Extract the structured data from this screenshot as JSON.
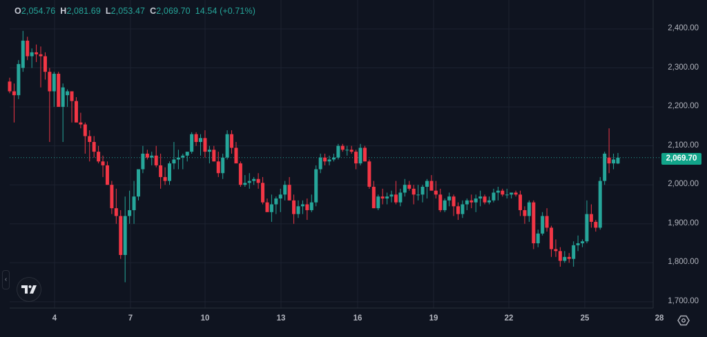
{
  "legend": {
    "open_label": "O",
    "open": "2,054.76",
    "high_label": "H",
    "high": "2,081.69",
    "low_label": "L",
    "low": "2,053.47",
    "close_label": "C",
    "close": "2,069.70",
    "change": "14.54 (+0.71%)"
  },
  "price_axis": {
    "labels": [
      "2,400.00",
      "2,300.00",
      "2,200.00",
      "2,100.00",
      "2,000.00",
      "1,900.00",
      "1,800.00",
      "1,700.00"
    ],
    "current_price": "2,069.70"
  },
  "time_axis": {
    "labels": [
      "4",
      "7",
      "10",
      "13",
      "16",
      "19",
      "22",
      "25",
      "28"
    ]
  },
  "colors": {
    "background": "#0f1420",
    "up": "#26a69a",
    "down": "#f23645",
    "grid": "#1c2230",
    "price_tag": "#12a58a"
  },
  "icons": {
    "logo": "tradingview-logo-icon",
    "settings": "settings-hexagon-icon",
    "collapse": "chevron-left-icon"
  },
  "chart_data": {
    "type": "candlestick",
    "title": "",
    "xlabel": "",
    "ylabel": "",
    "ylim": [
      1680,
      2440
    ],
    "grid": true,
    "x_tick_labels": [
      "4",
      "7",
      "10",
      "13",
      "16",
      "19",
      "22",
      "25",
      "28"
    ],
    "y_tick_labels": [
      2400,
      2300,
      2200,
      2100,
      2000,
      1900,
      1800,
      1700
    ],
    "last_price": 2069.7,
    "ohlc_last": {
      "open": 2054.76,
      "high": 2081.69,
      "low": 2053.47,
      "close": 2069.7,
      "change": 14.54,
      "change_pct": 0.71
    },
    "candles": [
      [
        2265,
        2275,
        2235,
        2240
      ],
      [
        2240,
        2260,
        2160,
        2230
      ],
      [
        2230,
        2320,
        2220,
        2310
      ],
      [
        2300,
        2395,
        2290,
        2370
      ],
      [
        2370,
        2380,
        2320,
        2330
      ],
      [
        2330,
        2350,
        2300,
        2340
      ],
      [
        2340,
        2360,
        2315,
        2335
      ],
      [
        2335,
        2355,
        2250,
        2330
      ],
      [
        2330,
        2340,
        2270,
        2290
      ],
      [
        2290,
        2300,
        2110,
        2240
      ],
      [
        2240,
        2290,
        2200,
        2285
      ],
      [
        2285,
        2290,
        2210,
        2200
      ],
      [
        2200,
        2260,
        2110,
        2250
      ],
      [
        2230,
        2245,
        2200,
        2240
      ],
      [
        2240,
        2240,
        2160,
        2215
      ],
      [
        2215,
        2225,
        2190,
        2160
      ],
      [
        2160,
        2185,
        2145,
        2155
      ],
      [
        2155,
        2160,
        2080,
        2125
      ],
      [
        2125,
        2140,
        2060,
        2110
      ],
      [
        2110,
        2125,
        2070,
        2085
      ],
      [
        2085,
        2100,
        2055,
        2060
      ],
      [
        2060,
        2075,
        2020,
        2050
      ],
      [
        2050,
        2060,
        2000,
        2000
      ],
      [
        2000,
        2010,
        1925,
        1940
      ],
      [
        1940,
        1990,
        1900,
        1920
      ],
      [
        1920,
        1935,
        1810,
        1820
      ],
      [
        1820,
        1970,
        1750,
        1920
      ],
      [
        1920,
        1985,
        1900,
        1935
      ],
      [
        1935,
        2010,
        1900,
        1970
      ],
      [
        1970,
        2015,
        1960,
        2040
      ],
      [
        2040,
        2100,
        2030,
        2080
      ],
      [
        2080,
        2090,
        2065,
        2070
      ],
      [
        2070,
        2085,
        2050,
        2075
      ],
      [
        2075,
        2100,
        2045,
        2050
      ],
      [
        2050,
        2080,
        1990,
        2020
      ],
      [
        2020,
        2045,
        2000,
        2010
      ],
      [
        2010,
        2060,
        2000,
        2055
      ],
      [
        2055,
        2110,
        2040,
        2065
      ],
      [
        2065,
        2090,
        2040,
        2070
      ],
      [
        2070,
        2080,
        2040,
        2075
      ],
      [
        2075,
        2080,
        2060,
        2085
      ],
      [
        2085,
        2135,
        2080,
        2130
      ],
      [
        2130,
        2135,
        2100,
        2110
      ],
      [
        2110,
        2130,
        2075,
        2120
      ],
      [
        2120,
        2140,
        2070,
        2085
      ],
      [
        2085,
        2100,
        2055,
        2090
      ],
      [
        2090,
        2100,
        2060,
        2060
      ],
      [
        2060,
        2085,
        2020,
        2030
      ],
      [
        2030,
        2080,
        2015,
        2070
      ],
      [
        2070,
        2140,
        2065,
        2130
      ],
      [
        2130,
        2140,
        2080,
        2095
      ],
      [
        2095,
        2110,
        2060,
        2055
      ],
      [
        2055,
        2060,
        1995,
        2000
      ],
      [
        2000,
        2025,
        1995,
        2005
      ],
      [
        2005,
        2030,
        1990,
        2010
      ],
      [
        2010,
        2020,
        2000,
        2015
      ],
      [
        2015,
        2030,
        1990,
        2005
      ],
      [
        2005,
        2020,
        1950,
        1955
      ],
      [
        1955,
        1965,
        1940,
        1930
      ],
      [
        1930,
        1975,
        1905,
        1950
      ],
      [
        1950,
        1970,
        1925,
        1965
      ],
      [
        1965,
        1990,
        1930,
        1975
      ],
      [
        1975,
        2010,
        1960,
        2000
      ],
      [
        2000,
        2020,
        1960,
        1960
      ],
      [
        1960,
        1975,
        1900,
        1925
      ],
      [
        1925,
        1960,
        1915,
        1945
      ],
      [
        1945,
        1960,
        1925,
        1950
      ],
      [
        1950,
        1965,
        1910,
        1935
      ],
      [
        1935,
        1975,
        1930,
        1955
      ],
      [
        1955,
        2050,
        1945,
        2040
      ],
      [
        2040,
        2080,
        2030,
        2070
      ],
      [
        2070,
        2080,
        2050,
        2060
      ],
      [
        2060,
        2075,
        2050,
        2065
      ],
      [
        2065,
        2080,
        2060,
        2070
      ],
      [
        2070,
        2105,
        2065,
        2100
      ],
      [
        2100,
        2105,
        2085,
        2090
      ],
      [
        2090,
        2100,
        2075,
        2090
      ],
      [
        2090,
        2100,
        2080,
        2085
      ],
      [
        2085,
        2090,
        2040,
        2055
      ],
      [
        2055,
        2105,
        2050,
        2095
      ],
      [
        2095,
        2100,
        2060,
        2060
      ],
      [
        2060,
        2065,
        1990,
        1995
      ],
      [
        1995,
        2010,
        1940,
        1940
      ],
      [
        1940,
        1975,
        1935,
        1970
      ],
      [
        1970,
        1990,
        1950,
        1965
      ],
      [
        1965,
        1980,
        1950,
        1970
      ],
      [
        1970,
        1985,
        1955,
        1975
      ],
      [
        1975,
        2010,
        1950,
        1955
      ],
      [
        1955,
        1990,
        1945,
        1980
      ],
      [
        1980,
        2015,
        1970,
        2000
      ],
      [
        2000,
        2010,
        1985,
        1990
      ],
      [
        1990,
        2000,
        1950,
        1975
      ],
      [
        1975,
        2000,
        1960,
        1975
      ],
      [
        1975,
        2000,
        1955,
        1995
      ],
      [
        1995,
        2015,
        1965,
        2010
      ],
      [
        2010,
        2025,
        1990,
        1985
      ],
      [
        1985,
        2010,
        1965,
        1975
      ],
      [
        1975,
        1990,
        1930,
        1935
      ],
      [
        1935,
        1965,
        1930,
        1960
      ],
      [
        1960,
        1980,
        1945,
        1970
      ],
      [
        1970,
        1975,
        1920,
        1945
      ],
      [
        1945,
        1955,
        1910,
        1925
      ],
      [
        1925,
        1960,
        1915,
        1950
      ],
      [
        1950,
        1965,
        1935,
        1960
      ],
      [
        1960,
        1975,
        1940,
        1955
      ],
      [
        1955,
        1975,
        1930,
        1965
      ],
      [
        1965,
        1985,
        1945,
        1970
      ],
      [
        1970,
        1975,
        1950,
        1955
      ],
      [
        1955,
        1970,
        1950,
        1960
      ],
      [
        1960,
        1990,
        1955,
        1980
      ],
      [
        1980,
        1995,
        1960,
        1985
      ],
      [
        1985,
        1990,
        1970,
        1975
      ],
      [
        1975,
        1990,
        1965,
        1975
      ],
      [
        1975,
        1980,
        1965,
        1980
      ],
      [
        1980,
        1985,
        1970,
        1975
      ],
      [
        1975,
        1985,
        1920,
        1935
      ],
      [
        1935,
        1945,
        1900,
        1920
      ],
      [
        1920,
        1960,
        1905,
        1955
      ],
      [
        1955,
        1960,
        1835,
        1850
      ],
      [
        1850,
        1885,
        1840,
        1875
      ],
      [
        1875,
        1930,
        1870,
        1920
      ],
      [
        1920,
        1940,
        1880,
        1890
      ],
      [
        1890,
        1895,
        1815,
        1835
      ],
      [
        1835,
        1860,
        1815,
        1830
      ],
      [
        1830,
        1840,
        1790,
        1805
      ],
      [
        1805,
        1830,
        1800,
        1815
      ],
      [
        1815,
        1825,
        1800,
        1810
      ],
      [
        1810,
        1855,
        1790,
        1845
      ],
      [
        1845,
        1870,
        1830,
        1850
      ],
      [
        1850,
        1860,
        1840,
        1855
      ],
      [
        1855,
        1960,
        1850,
        1925
      ],
      [
        1925,
        1950,
        1890,
        1905
      ],
      [
        1905,
        1910,
        1880,
        1890
      ],
      [
        1890,
        2020,
        1885,
        2010
      ],
      [
        2010,
        2085,
        2000,
        2080
      ],
      [
        2070,
        2145,
        2030,
        2055
      ],
      [
        2055,
        2080,
        2040,
        2065
      ],
      [
        2054.76,
        2081.69,
        2053.47,
        2069.7
      ]
    ]
  }
}
